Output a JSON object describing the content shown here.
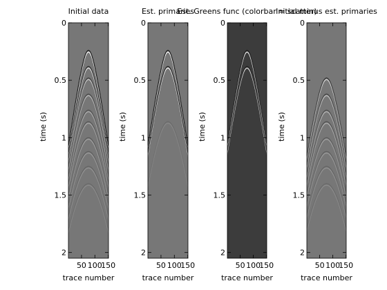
{
  "chart_data": [
    {
      "type": "heatmap",
      "title": "Initial data",
      "xlabel": "trace number",
      "ylabel": "time (s)",
      "xlim": [
        1,
        151
      ],
      "ylim": [
        2.05,
        0
      ],
      "xticks": [
        50,
        100,
        150
      ],
      "yticks": [
        0,
        0.5,
        1,
        1.5,
        2
      ],
      "ytick_labels": [
        "0",
        "0.5",
        "1",
        "1.5",
        "2"
      ],
      "background": "#777777",
      "events": [
        {
          "t0": 0.24,
          "amp": 1.0
        },
        {
          "t0": 0.38,
          "amp": 0.8
        },
        {
          "t0": 0.48,
          "amp": 0.6
        },
        {
          "t0": 0.62,
          "amp": 0.5
        },
        {
          "t0": 0.76,
          "amp": 0.4
        },
        {
          "t0": 0.86,
          "amp": 0.35
        },
        {
          "t0": 1.0,
          "amp": 0.3
        },
        {
          "t0": 1.12,
          "amp": 0.25
        },
        {
          "t0": 1.25,
          "amp": 0.2
        },
        {
          "t0": 1.4,
          "amp": 0.15
        }
      ]
    },
    {
      "type": "heatmap",
      "title": "Est. primaries",
      "xlabel": "trace number",
      "ylabel": "time (s)",
      "xlim": [
        1,
        151
      ],
      "ylim": [
        2.05,
        0
      ],
      "xticks": [
        50,
        100,
        150
      ],
      "yticks": [
        0,
        0.5,
        1,
        1.5,
        2
      ],
      "ytick_labels": [
        "0",
        "0.5",
        "1",
        "1.5",
        "2"
      ],
      "background": "#777777",
      "events": [
        {
          "t0": 0.24,
          "amp": 1.0
        },
        {
          "t0": 0.38,
          "amp": 0.9
        },
        {
          "t0": 0.86,
          "amp": 0.12
        }
      ]
    },
    {
      "type": "heatmap",
      "title": "Est. Greens func (colorbar = scatter)",
      "xlabel": "trace number",
      "ylabel": "time (s)",
      "xlim": [
        1,
        151
      ],
      "ylim": [
        2.05,
        0
      ],
      "xticks": [
        50,
        100,
        150
      ],
      "yticks": [
        0,
        0.5,
        1,
        1.5,
        2
      ],
      "ytick_labels": [
        "0",
        "0.5",
        "1",
        "1.5",
        "2"
      ],
      "background": "#3c3c3c",
      "events": [
        {
          "t0": 0.24,
          "amp": 0.9
        },
        {
          "t0": 0.38,
          "amp": 0.8
        }
      ]
    },
    {
      "type": "heatmap",
      "title": "Initial minus est. primaries",
      "xlabel": "trace number",
      "ylabel": "time (s)",
      "xlim": [
        1,
        151
      ],
      "ylim": [
        2.05,
        0
      ],
      "xticks": [
        50,
        100,
        150
      ],
      "yticks": [
        0,
        0.5,
        1,
        1.5,
        2
      ],
      "ytick_labels": [
        "0",
        "0.5",
        "1",
        "1.5",
        "2"
      ],
      "background": "#777777",
      "events": [
        {
          "t0": 0.48,
          "amp": 0.7
        },
        {
          "t0": 0.62,
          "amp": 0.55
        },
        {
          "t0": 0.76,
          "amp": 0.45
        },
        {
          "t0": 0.86,
          "amp": 0.4
        },
        {
          "t0": 1.0,
          "amp": 0.3
        },
        {
          "t0": 1.12,
          "amp": 0.25
        },
        {
          "t0": 1.25,
          "amp": 0.2
        },
        {
          "t0": 1.4,
          "amp": 0.15
        }
      ]
    }
  ]
}
